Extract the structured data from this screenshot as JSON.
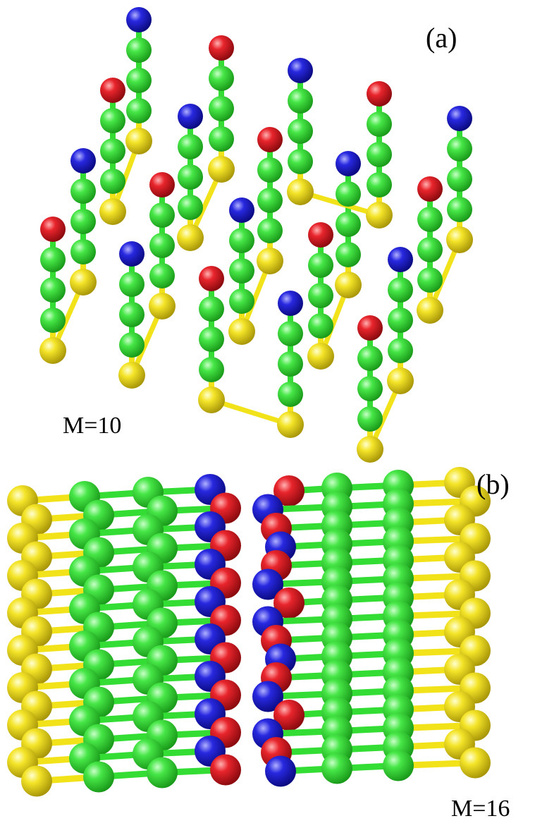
{
  "panels": [
    {
      "tag": "(a)",
      "caption": "M=10"
    },
    {
      "tag": "(b)",
      "caption": "M=16"
    }
  ],
  "colors": {
    "background": "#ffffff",
    "head_red": "#e0202a",
    "head_blue": "#2222dd",
    "body_green": "#33dd33",
    "tail_yellow": "#f2e21a",
    "bond_yellow": "#f2e21a"
  },
  "legend": {
    "red": "head bead (type A)",
    "blue": "head bead (type B)",
    "green": "body bead",
    "yellow": "tail bead"
  }
}
